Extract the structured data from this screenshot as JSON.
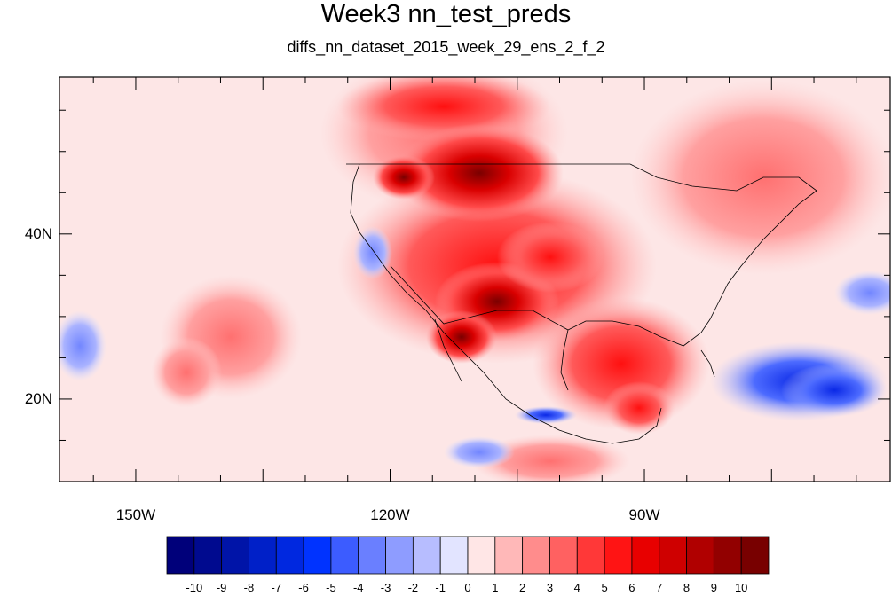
{
  "title": "Week3 nn_test_preds",
  "subtitle": "diffs_nn_dataset_2015_week_29_ens_2_f_2",
  "axes": {
    "lon_ticks": [
      {
        "lon": -150,
        "label": "150W"
      },
      {
        "lon": -120,
        "label": "120W"
      },
      {
        "lon": -90,
        "label": "90W"
      }
    ],
    "lat_ticks": [
      {
        "lat": 40,
        "label": "40N"
      },
      {
        "lat": 20,
        "label": "20N"
      }
    ],
    "lon_range": [
      -159,
      -61
    ],
    "lat_range": [
      10,
      59
    ]
  },
  "colorbar": {
    "levels": [
      "-10",
      "-9",
      "-8",
      "-7",
      "-6",
      "-5",
      "-4",
      "-3",
      "-2",
      "-1",
      "0",
      "1",
      "2",
      "3",
      "4",
      "5",
      "6",
      "7",
      "8",
      "9",
      "10"
    ],
    "colors": [
      "#00007a",
      "#000a8f",
      "#0014a8",
      "#0020c8",
      "#0028e0",
      "#0033ff",
      "#3c5cff",
      "#6a7fff",
      "#8e9cff",
      "#b7bdff",
      "#e2e4ff",
      "#ffe6e6",
      "#ffb8b8",
      "#ff8c8c",
      "#ff6161",
      "#ff3838",
      "#ff1414",
      "#e80000",
      "#cf0000",
      "#b00000",
      "#920000",
      "#780000"
    ]
  },
  "anomaly_regions": [
    {
      "lon": -109,
      "lat": 47,
      "value": 9
    },
    {
      "lon": -117,
      "lat": 47,
      "value": 8
    },
    {
      "lon": -106,
      "lat": 54,
      "value": 6
    },
    {
      "lon": -97,
      "lat": 27,
      "value": 6
    },
    {
      "lon": -105,
      "lat": 33,
      "value": 7
    },
    {
      "lon": -108,
      "lat": 29,
      "value": 7
    },
    {
      "lon": -77,
      "lat": 23,
      "value": -6
    },
    {
      "lon": -102,
      "lat": 19,
      "value": -6
    },
    {
      "lon": -158,
      "lat": 26,
      "value": -3
    },
    {
      "lon": -117,
      "lat": 36,
      "value": -3
    }
  ]
}
